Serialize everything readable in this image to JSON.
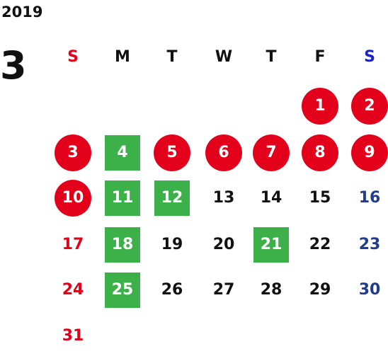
{
  "calendar": {
    "year": "2019",
    "month": "3",
    "weekdays": [
      "S",
      "M",
      "T",
      "W",
      "T",
      "F",
      "S"
    ],
    "weeks": [
      [
        {
          "day": "",
          "type": "empty"
        },
        {
          "day": "",
          "type": "empty"
        },
        {
          "day": "",
          "type": "empty"
        },
        {
          "day": "",
          "type": "empty"
        },
        {
          "day": "",
          "type": "empty"
        },
        {
          "day": "1",
          "type": "holiday"
        },
        {
          "day": "2",
          "type": "holiday"
        }
      ],
      [
        {
          "day": "3",
          "type": "holiday"
        },
        {
          "day": "4",
          "type": "open"
        },
        {
          "day": "5",
          "type": "holiday"
        },
        {
          "day": "6",
          "type": "holiday"
        },
        {
          "day": "7",
          "type": "holiday"
        },
        {
          "day": "8",
          "type": "holiday"
        },
        {
          "day": "9",
          "type": "holiday"
        }
      ],
      [
        {
          "day": "10",
          "type": "holiday"
        },
        {
          "day": "11",
          "type": "open"
        },
        {
          "day": "12",
          "type": "open"
        },
        {
          "day": "13",
          "type": "normal"
        },
        {
          "day": "14",
          "type": "normal"
        },
        {
          "day": "15",
          "type": "normal"
        },
        {
          "day": "16",
          "type": "normal"
        }
      ],
      [
        {
          "day": "17",
          "type": "normal"
        },
        {
          "day": "18",
          "type": "open"
        },
        {
          "day": "19",
          "type": "normal"
        },
        {
          "day": "20",
          "type": "normal"
        },
        {
          "day": "21",
          "type": "open"
        },
        {
          "day": "22",
          "type": "normal"
        },
        {
          "day": "23",
          "type": "normal"
        }
      ],
      [
        {
          "day": "24",
          "type": "normal"
        },
        {
          "day": "25",
          "type": "open"
        },
        {
          "day": "26",
          "type": "normal"
        },
        {
          "day": "27",
          "type": "normal"
        },
        {
          "day": "28",
          "type": "normal"
        },
        {
          "day": "29",
          "type": "normal"
        },
        {
          "day": "30",
          "type": "normal"
        }
      ],
      [
        {
          "day": "31",
          "type": "normal"
        },
        {
          "day": "",
          "type": "empty"
        },
        {
          "day": "",
          "type": "empty"
        },
        {
          "day": "",
          "type": "empty"
        },
        {
          "day": "",
          "type": "empty"
        },
        {
          "day": "",
          "type": "empty"
        },
        {
          "day": "",
          "type": "empty"
        }
      ]
    ],
    "colors": {
      "holiday": "#e2001b",
      "open": "#3cb14a",
      "sunday": "#e2001b",
      "saturday_header": "#1a24c4",
      "saturday": "#1f3d8c",
      "text": "#111111"
    }
  }
}
